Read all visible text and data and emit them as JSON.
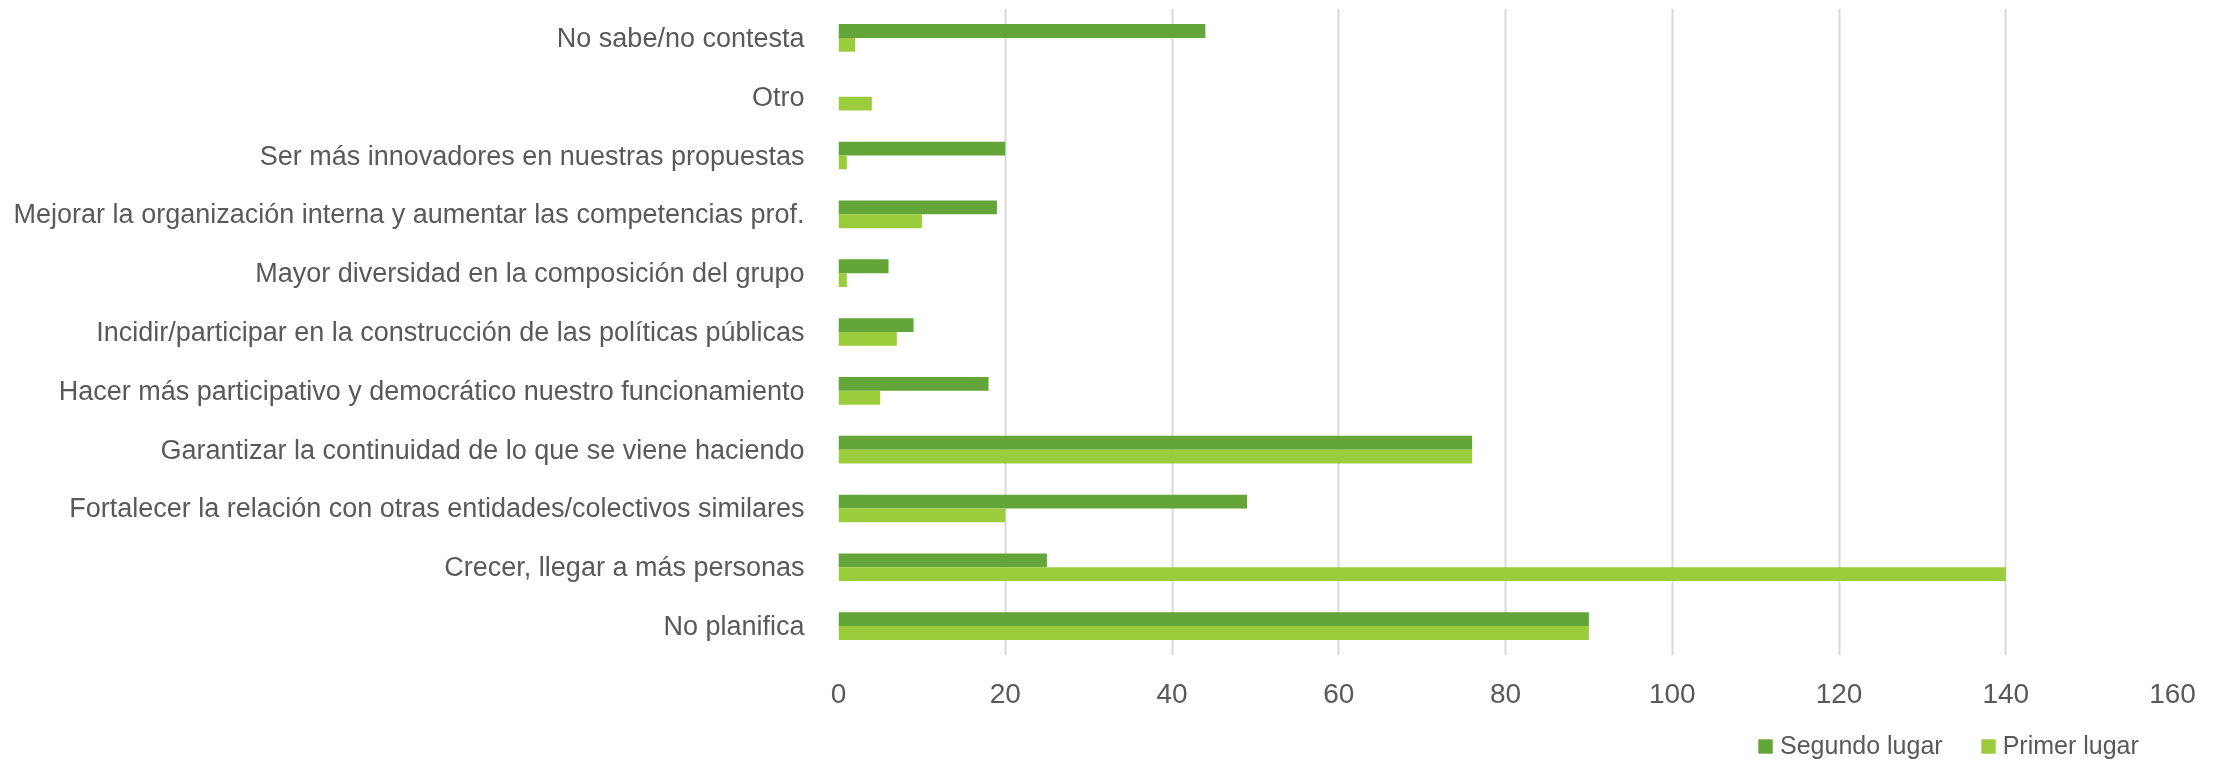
{
  "chart_data": {
    "type": "bar",
    "orientation": "horizontal",
    "categories": [
      "No sabe/no contesta",
      "Otro",
      "Ser más innovadores en nuestras propuestas",
      "Mejorar la organización interna y aumentar las competencias prof.",
      "Mayor diversidad en la composición del grupo",
      "Incidir/participar en la construcción de las políticas públicas",
      "Hacer más participativo y democrático nuestro funcionamiento",
      "Garantizar la continuidad de lo que se viene haciendo",
      "Fortalecer la relación con otras entidades/colectivos similares",
      "Crecer, llegar a más personas",
      "No planifica"
    ],
    "series": [
      {
        "name": "Segundo lugar",
        "color": "#63a539",
        "values": [
          44,
          null,
          20,
          19,
          6,
          9,
          18,
          76,
          49,
          25,
          90
        ]
      },
      {
        "name": "Primer lugar",
        "color": "#9bcc3c",
        "values": [
          2,
          4,
          1,
          10,
          1,
          7,
          5,
          76,
          20,
          140,
          90
        ]
      }
    ],
    "xlim": [
      0,
      160
    ],
    "xticks": [
      0,
      20,
      40,
      60,
      80,
      100,
      120,
      140,
      160
    ],
    "grid": "x",
    "legend": "bottom"
  }
}
